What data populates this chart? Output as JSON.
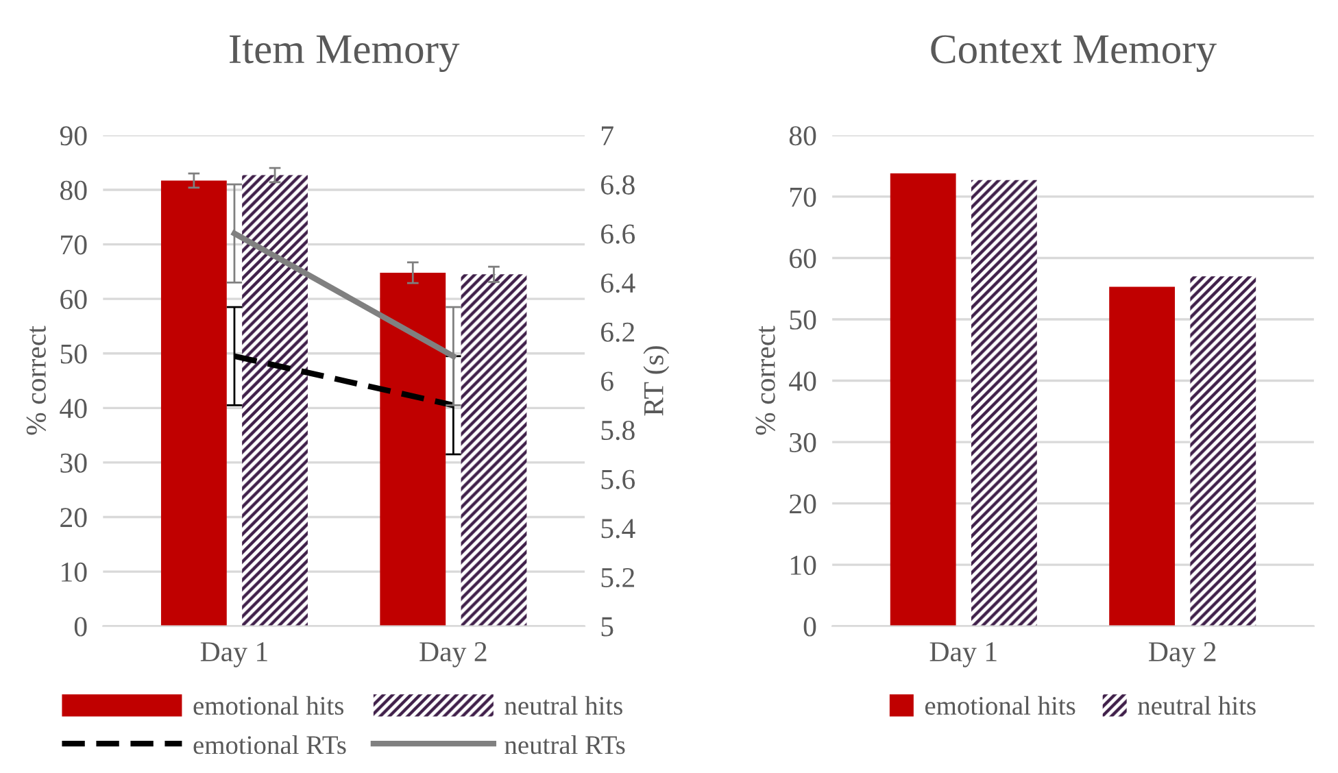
{
  "chart_data": [
    {
      "type": "bar",
      "title": "Item Memory",
      "ylabel": "% correct",
      "y2label": "RT (s)",
      "categories": [
        "Day 1",
        "Day 2"
      ],
      "series": [
        {
          "name": "emotional hits",
          "color": "#c00000",
          "values": [
            81.7,
            64.8
          ],
          "errors": [
            1.3,
            1.9
          ]
        },
        {
          "name": "neutral hits",
          "color": "#40204a",
          "values": [
            82.7,
            64.5
          ],
          "errors": [
            1.3,
            1.4
          ]
        },
        {
          "name": "emotional RTs",
          "type": "line",
          "axis": "y2",
          "color": "#000000",
          "line_style": "dashed",
          "values": [
            6.1,
            5.9
          ],
          "errors": [
            0.2,
            0.2
          ]
        },
        {
          "name": "neutral RTs",
          "type": "line",
          "axis": "y2",
          "color": "#808080",
          "line_style": "solid",
          "values": [
            6.6,
            6.1
          ],
          "errors": [
            0.2,
            0.2
          ]
        }
      ],
      "ylim": [
        0,
        90
      ],
      "yticks": [
        0,
        10,
        20,
        30,
        40,
        50,
        60,
        70,
        80,
        90
      ],
      "y2lim": [
        5,
        7
      ],
      "y2ticks": [
        5,
        5.2,
        5.4,
        5.6,
        5.8,
        6,
        6.2,
        6.4,
        6.6,
        6.8,
        7
      ],
      "grid": "y",
      "legend": "bottom"
    },
    {
      "type": "bar",
      "title": "Context Memory",
      "ylabel": "% correct",
      "categories": [
        "Day 1",
        "Day 2"
      ],
      "series": [
        {
          "name": "emotional hits",
          "color": "#c00000",
          "values": [
            73.8,
            55.3
          ]
        },
        {
          "name": "neutral hits",
          "color": "#40204a",
          "values": [
            72.7,
            57.0
          ]
        }
      ],
      "ylim": [
        0,
        80
      ],
      "yticks": [
        0,
        10,
        20,
        30,
        40,
        50,
        60,
        70,
        80
      ],
      "grid": "y",
      "legend": "bottom"
    }
  ]
}
